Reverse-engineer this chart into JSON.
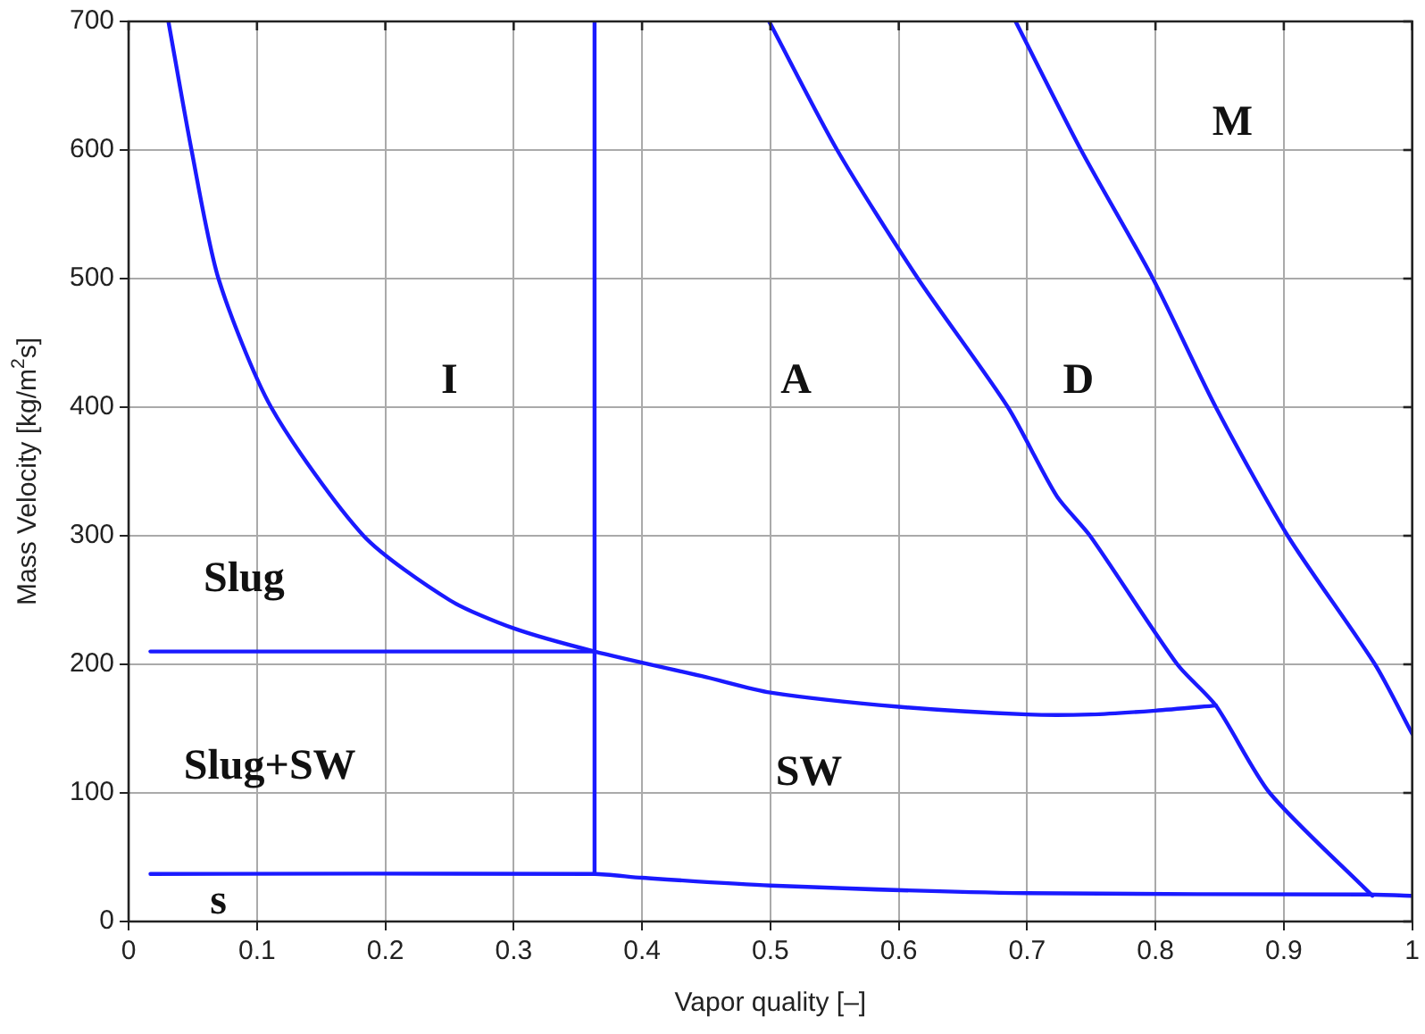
{
  "chart_data": {
    "type": "line",
    "xlabel": "Vapor quality [–]",
    "ylabel": "Mass Velocity [kg/m$^{2}$s]",
    "xlim": [
      0,
      1
    ],
    "xticks": [
      0,
      0.1,
      0.2,
      0.3,
      0.4,
      0.5,
      0.6,
      0.7,
      0.8,
      0.9,
      1
    ],
    "ylim": [
      0,
      700
    ],
    "yticks": [
      0,
      100,
      200,
      300,
      400,
      500,
      600,
      700
    ],
    "grid": true,
    "legend": false,
    "marker": "none",
    "line_style": "solid",
    "series": [
      {
        "color": "#1a1aff",
        "x": [
          0.031,
          0.049,
          0.07,
          0.111,
          0.183,
          0.25,
          0.3,
          0.363,
          0.45,
          0.5,
          0.6,
          0.7,
          0.75,
          0.8,
          0.847
        ],
        "values": [
          700,
          600,
          500,
          400,
          300,
          250,
          228,
          210,
          190,
          178,
          167,
          161,
          161,
          164,
          168
        ]
      },
      {
        "color": "#1a1aff",
        "x": [
          0.017,
          0.363
        ],
        "values": [
          210,
          210
        ]
      },
      {
        "color": "#1a1aff",
        "x": [
          0.363,
          0.363
        ],
        "values": [
          700,
          37
        ]
      },
      {
        "color": "#1a1aff",
        "x": [
          0.017,
          0.363,
          0.4,
          0.5,
          0.7,
          0.965,
          1
        ],
        "values": [
          37,
          37,
          34,
          28,
          22,
          21,
          20
        ]
      },
      {
        "color": "#1a1aff",
        "x": [
          0.499,
          0.552,
          0.615,
          0.685,
          0.723,
          0.749,
          0.817,
          0.847,
          0.889,
          0.969
        ],
        "values": [
          700,
          600,
          500,
          400,
          331,
          300,
          200,
          168,
          100,
          20
        ]
      },
      {
        "color": "#1a1aff",
        "x": [
          0.691,
          0.742,
          0.798,
          0.847,
          0.903,
          0.971,
          1
        ],
        "values": [
          700,
          600,
          500,
          400,
          300,
          200,
          146
        ]
      }
    ],
    "annotations": [
      "I",
      "A",
      "D",
      "M",
      "Slug",
      "Slug+SW",
      "SW",
      "s"
    ]
  }
}
